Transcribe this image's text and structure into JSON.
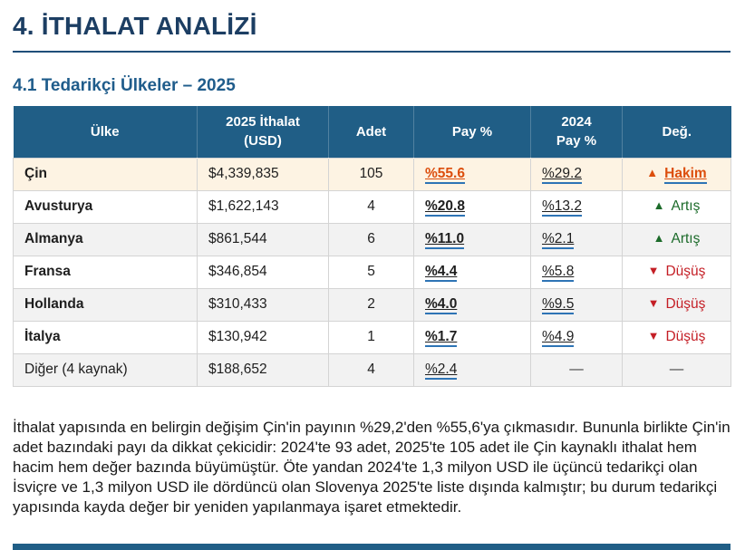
{
  "page": {
    "title": "4. İTHALAT ANALİZİ",
    "subtitle": "4.1 Tedarikçi Ülkeler – 2025"
  },
  "table": {
    "headers": [
      "Ülke",
      "2025 İthalat\n(USD)",
      "Adet",
      "Pay %",
      "2024\nPay %",
      "Değ."
    ],
    "empty_value": "—",
    "rows": [
      {
        "country": "Çin",
        "usd": "$4,339,835",
        "adet": "105",
        "pay": "%55.6",
        "pay2024": "%29.2",
        "deg": "Hakim",
        "trend": "hakim",
        "bold": true,
        "highlight": true
      },
      {
        "country": "Avusturya",
        "usd": "$1,622,143",
        "adet": "4",
        "pay": "%20.8",
        "pay2024": "%13.2",
        "deg": "Artış",
        "trend": "up",
        "bold": true,
        "highlight": false
      },
      {
        "country": "Almanya",
        "usd": "$861,544",
        "adet": "6",
        "pay": "%11.0",
        "pay2024": "%2.1",
        "deg": "Artış",
        "trend": "up",
        "bold": true,
        "highlight": false
      },
      {
        "country": "Fransa",
        "usd": "$346,854",
        "adet": "5",
        "pay": "%4.4",
        "pay2024": "%5.8",
        "deg": "Düşüş",
        "trend": "down",
        "bold": true,
        "highlight": false
      },
      {
        "country": "Hollanda",
        "usd": "$310,433",
        "adet": "2",
        "pay": "%4.0",
        "pay2024": "%9.5",
        "deg": "Düşüş",
        "trend": "down",
        "bold": true,
        "highlight": false
      },
      {
        "country": "İtalya",
        "usd": "$130,942",
        "adet": "1",
        "pay": "%1.7",
        "pay2024": "%4.9",
        "deg": "Düşüş",
        "trend": "down",
        "bold": true,
        "highlight": false
      },
      {
        "country": "Diğer (4 kaynak)",
        "usd": "$188,652",
        "adet": "4",
        "pay": "%2.4",
        "pay2024": "—",
        "deg": "—",
        "trend": "none",
        "bold": false,
        "highlight": false
      }
    ]
  },
  "icons": {
    "trend_up": "▲",
    "trend_down": "▼"
  },
  "paragraph": "İthalat yapısında en belirgin değişim Çin'in payının %29,2'den %55,6'ya çıkmasıdır. Bununla birlikte Çin'in adet bazındaki payı da dikkat çekicidir: 2024'te 93 adet, 2025'te 105 adet ile Çin kaynaklı ithalat hem hacim hem değer bazında büyümüştür. Öte yandan 2024'te 1,3 milyon USD ile üçüncü tedarikçi olan İsviçre ve 1,3 milyon USD ile dördüncü olan Slovenya 2025'te liste dışında kalmıştır; bu durum tedarikçi yapısında kayda değer bir yeniden yapılanmaya işaret etmektedir.",
  "colors": {
    "title_navy": "#1c3e63",
    "subtitle_blue": "#1f5c8b",
    "rule_blue": "#1f4e79",
    "header_bg": "#205e86",
    "highlight_row": "#fdf3e3",
    "link_underline": "#2e74b5",
    "orange": "#dc4e0d",
    "green": "#1c6b2a",
    "red": "#c41e25"
  }
}
